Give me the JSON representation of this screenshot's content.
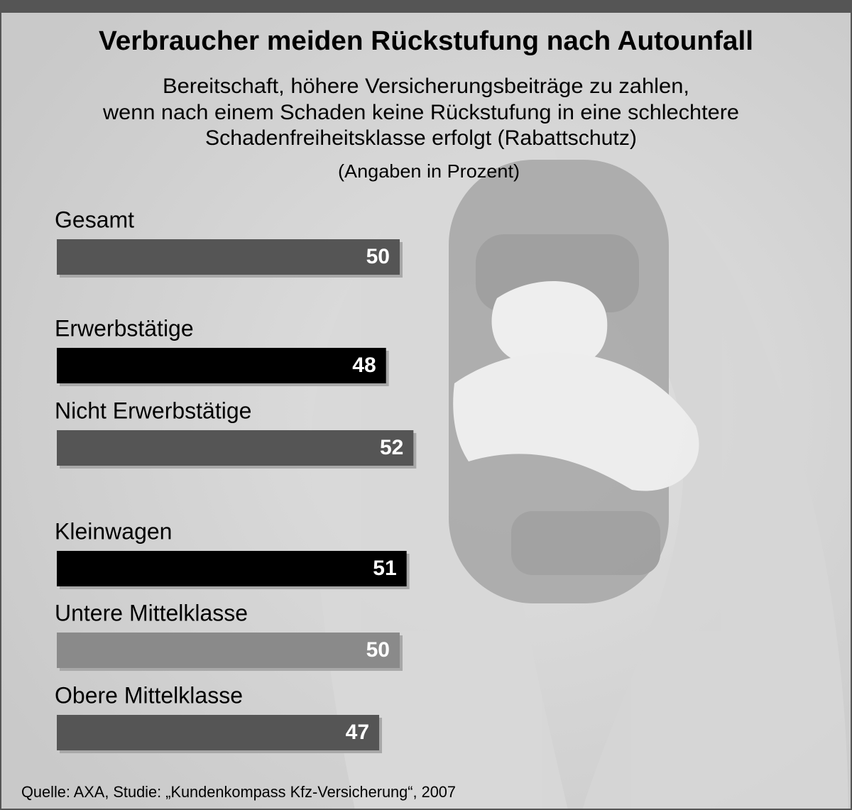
{
  "chart_data": {
    "type": "barh",
    "title": "Verbraucher meiden Rückstufung nach Autounfall",
    "subtitle": [
      "Bereitschaft, höhere Versicherungsbeiträge zu zahlen,",
      "wenn nach einem Schaden keine Rückstufung in eine schlechtere",
      "Schadenfreiheitsklasse erfolgt (Rabattschutz)"
    ],
    "unit_note": "(Angaben in Prozent)",
    "categories": [
      "Gesamt",
      "Erwerbstätige",
      "Nicht Erwerbstätige",
      "Kleinwagen",
      "Untere Mittelklasse",
      "Obere Mittelklasse"
    ],
    "values": [
      50,
      48,
      52,
      51,
      50,
      47
    ],
    "colors": [
      "#555555",
      "#000000",
      "#555555",
      "#000000",
      "#8a8a8a",
      "#555555"
    ],
    "source": "Quelle: AXA, Studie: „Kundenkompass Kfz-Versicherung“, 2007"
  }
}
